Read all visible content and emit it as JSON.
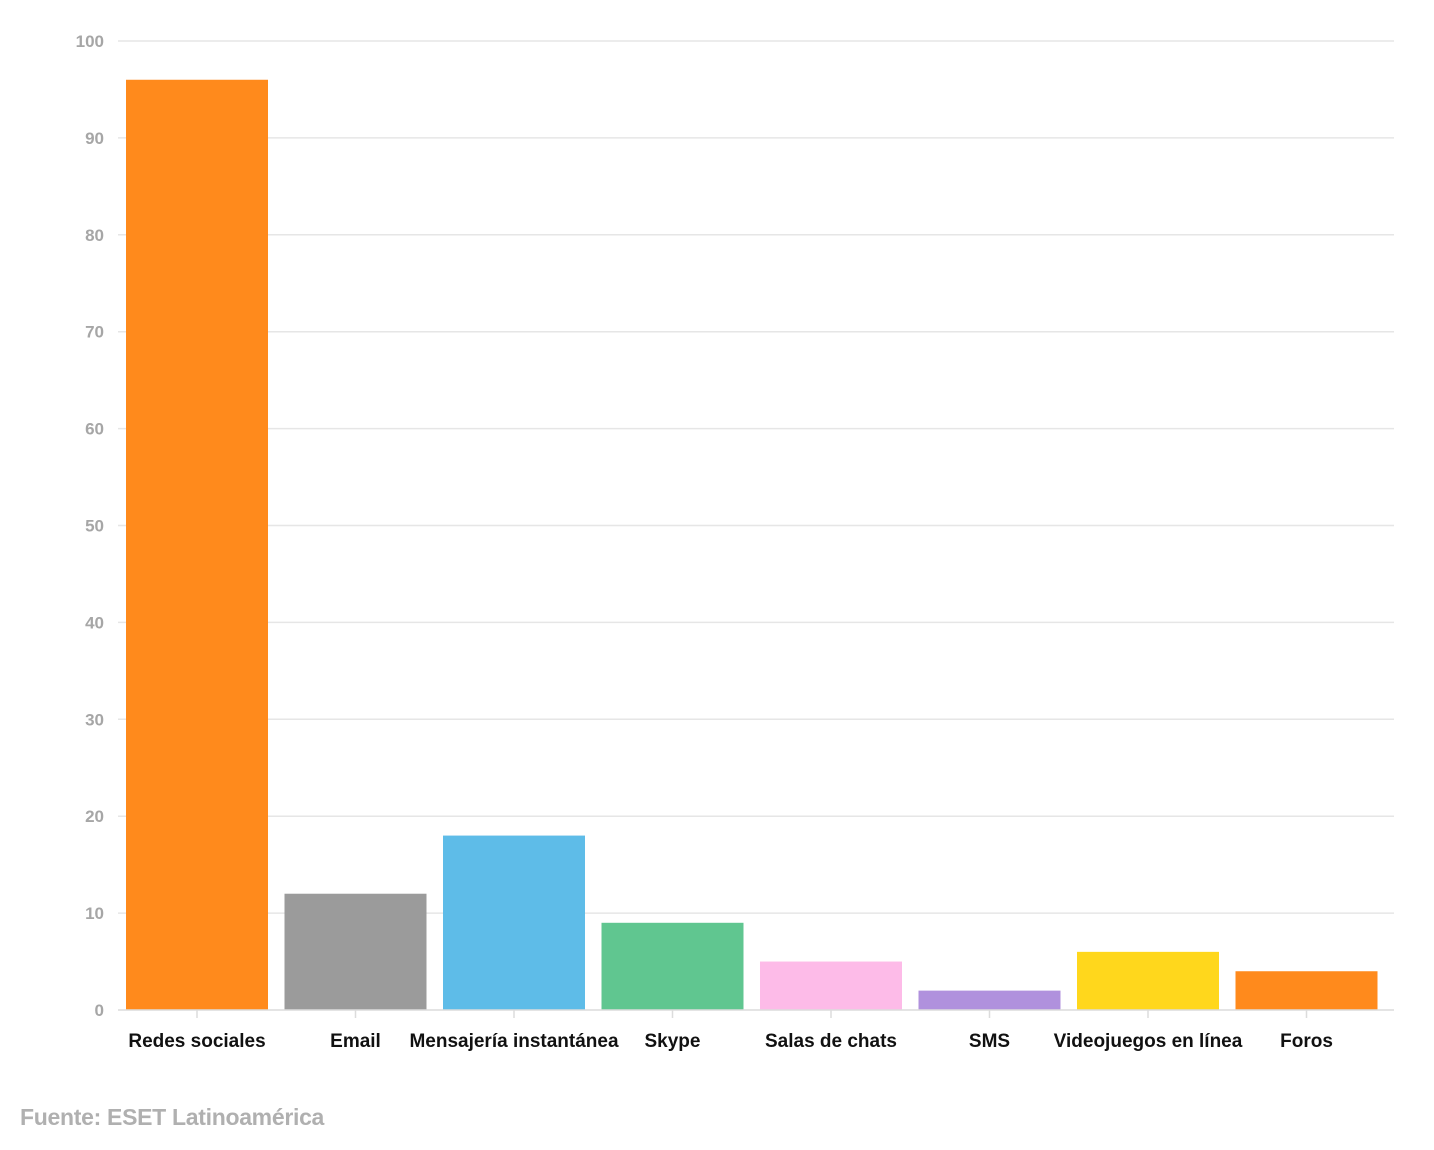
{
  "chart_data": {
    "type": "bar",
    "categories": [
      "Redes sociales",
      "Email",
      "Mensajería instantánea",
      "Skype",
      "Salas de chats",
      "SMS",
      "Videojuegos en línea",
      "Foros"
    ],
    "values": [
      96,
      12,
      18,
      9,
      5,
      2,
      6,
      4
    ],
    "colors": [
      "#ff8a1c",
      "#9b9b9b",
      "#5ebce8",
      "#60c690",
      "#fdbbe8",
      "#b091dd",
      "#ffd71c",
      "#ff8a1c"
    ],
    "title": "",
    "xlabel": "",
    "ylabel": "",
    "ylim": [
      0,
      100
    ],
    "yticks": [
      0,
      10,
      20,
      30,
      40,
      50,
      60,
      70,
      80,
      90,
      100
    ],
    "grid": true,
    "legend": "none"
  },
  "footer": {
    "source": "Fuente: ESET Latinoamérica"
  }
}
